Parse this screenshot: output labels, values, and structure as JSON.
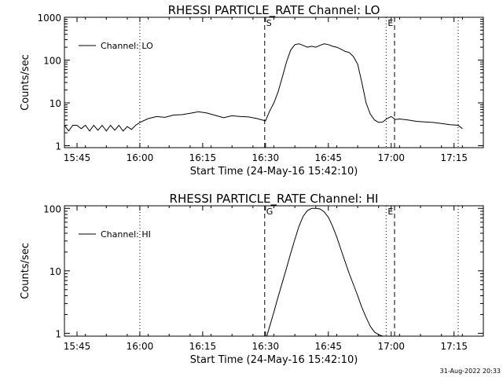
{
  "chart_data": [
    {
      "type": "line",
      "title": "RHESSI PARTICLE_RATE Channel: LO",
      "xlabel": "Start Time (24-May-16 15:42:10)",
      "ylabel": "Counts/sec",
      "x_ticks": [
        "15:45",
        "16:00",
        "16:15",
        "16:30",
        "16:45",
        "17:00",
        "17:15"
      ],
      "x_tick_minutes": [
        3,
        18,
        33,
        48,
        63,
        78,
        93
      ],
      "xlim_minutes": [
        0,
        100
      ],
      "y_scale": "log",
      "ylim": [
        0.9,
        1000
      ],
      "y_ticks": [
        "1",
        "10",
        "100",
        "1000"
      ],
      "y_tick_values": [
        1,
        10,
        100,
        1000
      ],
      "legend_position": "top-left",
      "series": [
        {
          "name": "Channel: LO",
          "x": [
            0,
            1,
            2,
            3,
            4,
            5,
            6,
            7,
            8,
            9,
            10,
            11,
            12,
            13,
            14,
            15,
            16,
            17,
            18,
            20,
            22,
            24,
            26,
            28,
            30,
            32,
            34,
            36,
            38,
            40,
            42,
            44,
            46,
            48,
            49,
            50,
            51,
            52,
            53,
            54,
            55,
            56,
            57,
            58,
            59,
            60,
            61,
            62,
            63,
            64,
            65,
            66,
            67,
            68,
            69,
            70,
            71,
            72,
            73,
            74,
            75,
            76,
            77,
            78,
            79,
            80,
            82,
            84,
            86,
            88,
            90,
            92,
            94,
            95
          ],
          "y": [
            3,
            2.2,
            3,
            3,
            2.5,
            3,
            2.2,
            3,
            2.3,
            3,
            2.2,
            3,
            2.3,
            3,
            2.2,
            2.8,
            2.4,
            3,
            3.5,
            4.3,
            4.8,
            4.6,
            5.2,
            5.3,
            5.7,
            6.2,
            5.8,
            5.1,
            4.5,
            5,
            4.8,
            4.7,
            4.3,
            3.8,
            6.5,
            10,
            18,
            40,
            90,
            170,
            230,
            240,
            220,
            200,
            210,
            200,
            220,
            240,
            230,
            210,
            200,
            180,
            160,
            150,
            120,
            80,
            30,
            10,
            5.5,
            4,
            3.5,
            3.6,
            4.3,
            4.8,
            4.1,
            4.2,
            4,
            3.7,
            3.6,
            3.5,
            3.3,
            3.1,
            3,
            2.5
          ]
        }
      ],
      "annotations": [
        {
          "label": "S",
          "x_minutes": 47.8,
          "style": "dashed"
        },
        {
          "label": "E",
          "x_minutes": 76.8,
          "style": "dotted"
        },
        {
          "label": "",
          "x_minutes": 78.8,
          "style": "dashed"
        },
        {
          "label": "",
          "x_minutes": 18,
          "style": "dotted"
        },
        {
          "label": "",
          "x_minutes": 94,
          "style": "dotted"
        }
      ]
    },
    {
      "type": "line",
      "title": "RHESSI PARTICLE_RATE Channel: HI",
      "xlabel": "Start Time (24-May-16 15:42:10)",
      "ylabel": "Counts/sec",
      "x_ticks": [
        "15:45",
        "16:00",
        "16:15",
        "16:30",
        "16:45",
        "17:00",
        "17:15"
      ],
      "x_tick_minutes": [
        3,
        18,
        33,
        48,
        63,
        78,
        93
      ],
      "xlim_minutes": [
        0,
        100
      ],
      "y_scale": "log",
      "ylim": [
        0.9,
        110
      ],
      "y_ticks": [
        "1",
        "10",
        "100"
      ],
      "y_tick_values": [
        1,
        10,
        100
      ],
      "legend_position": "top-left",
      "series": [
        {
          "name": "Channel: HI",
          "x": [
            48.3,
            49,
            50,
            51,
            52,
            53,
            54,
            55,
            56,
            57,
            58,
            59,
            60,
            61,
            62,
            63,
            64,
            65,
            66,
            67,
            68,
            69,
            70,
            71,
            72,
            73,
            74,
            75,
            76
          ],
          "y": [
            0.9,
            1.3,
            2.2,
            3.8,
            6.5,
            11,
            19,
            32,
            52,
            75,
            92,
            100,
            100,
            98,
            88,
            72,
            52,
            35,
            22,
            14,
            9,
            6,
            4,
            2.6,
            1.8,
            1.3,
            1.05,
            0.95,
            0.9
          ]
        }
      ],
      "annotations": [
        {
          "label": "G",
          "x_minutes": 47.8,
          "style": "dashed"
        },
        {
          "label": "E",
          "x_minutes": 76.8,
          "style": "dotted"
        },
        {
          "label": "",
          "x_minutes": 78.8,
          "style": "dashed"
        },
        {
          "label": "",
          "x_minutes": 18,
          "style": "dotted"
        },
        {
          "label": "",
          "x_minutes": 94,
          "style": "dotted"
        }
      ]
    }
  ],
  "footer": {
    "timestamp": "31-Aug-2022 20:33"
  }
}
